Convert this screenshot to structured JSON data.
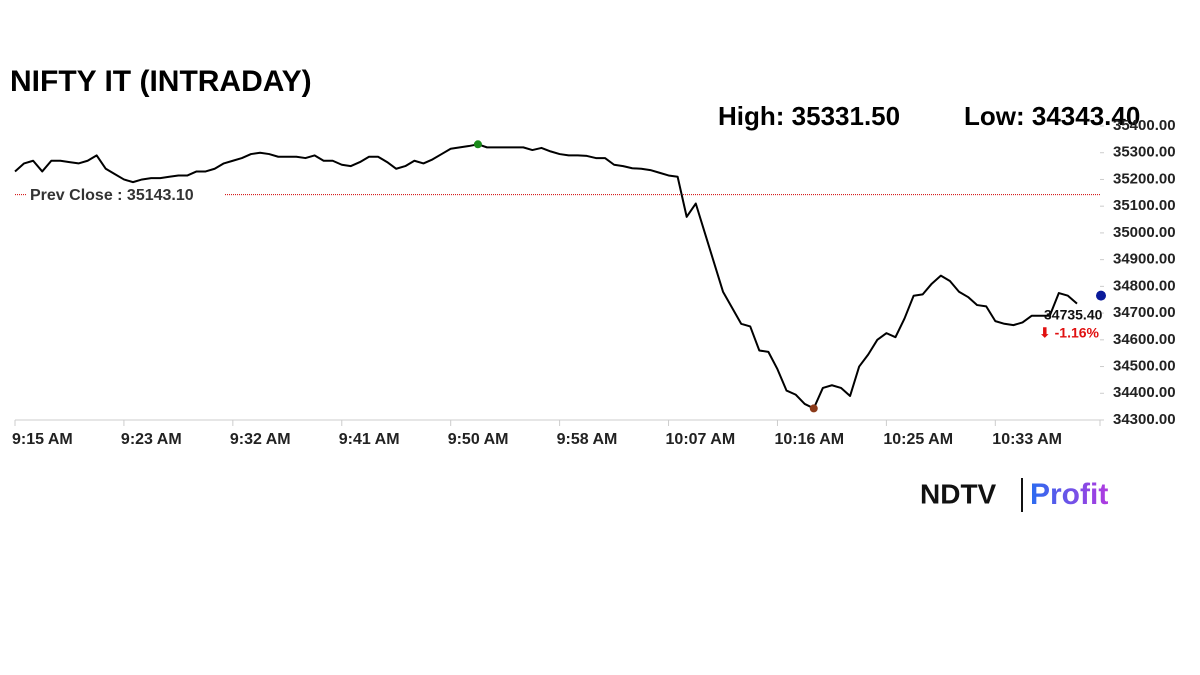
{
  "chart_data": {
    "type": "line",
    "title": "NIFTY IT (INTRADAY)",
    "high_label": "High: 35331.50",
    "low_label": "Low: 34343.40",
    "prev_close": {
      "value": 35143.1,
      "label": "Prev Close : 35143.10",
      "color": "#d00000"
    },
    "last_label": "34735.40",
    "change_label": "⬇ -1.16%",
    "color": "#000000",
    "high_color": "#1a8a1a",
    "low_color": "#8b3a1a",
    "last_color": "#0a1a9a",
    "categories": [
      "9:15 AM",
      null,
      null,
      null,
      null,
      null,
      null,
      null,
      null,
      null,
      null,
      null,
      "9:23 AM",
      null,
      null,
      null,
      null,
      null,
      null,
      null,
      null,
      null,
      null,
      null,
      "9:32 AM",
      null,
      null,
      null,
      null,
      null,
      null,
      null,
      null,
      null,
      null,
      null,
      "9:41 AM",
      null,
      null,
      null,
      null,
      null,
      null,
      null,
      null,
      null,
      null,
      null,
      "9:50 AM",
      null,
      null,
      null,
      null,
      null,
      null,
      null,
      null,
      null,
      null,
      null,
      "9:58 AM",
      null,
      null,
      null,
      null,
      null,
      null,
      null,
      null,
      null,
      null,
      null,
      "10:07 AM",
      null,
      null,
      null,
      null,
      null,
      null,
      null,
      null,
      null,
      null,
      null,
      "10:16 AM",
      null,
      null,
      null,
      null,
      null,
      null,
      null,
      null,
      null,
      null,
      null,
      "10:25 AM",
      null,
      null,
      null,
      null,
      null,
      null,
      null,
      null,
      null,
      null,
      null,
      "10:33 AM",
      null,
      null,
      null,
      null,
      null,
      null,
      null,
      null,
      null
    ],
    "values": [
      35230,
      35260,
      35270,
      35230,
      35270,
      35270,
      35265,
      35260,
      35270,
      35290,
      35240,
      35220,
      35200,
      35190,
      35200,
      35205,
      35205,
      35210,
      35215,
      35215,
      35230,
      35230,
      35240,
      35260,
      35270,
      35280,
      35295,
      35300,
      35295,
      35285,
      35285,
      35285,
      35280,
      35290,
      35270,
      35270,
      35255,
      35250,
      35265,
      35285,
      35285,
      35265,
      35240,
      35250,
      35270,
      35260,
      35275,
      35295,
      35315,
      35320,
      35325,
      35331.5,
      35320,
      35320,
      35320,
      35320,
      35320,
      35310,
      35318,
      35305,
      35295,
      35290,
      35290,
      35288,
      35280,
      35280,
      35255,
      35250,
      35242,
      35240,
      35235,
      35225,
      35215,
      35210,
      35060,
      35110,
      35000,
      34890,
      34780,
      34720,
      34660,
      34650,
      34560,
      34555,
      34490,
      34410,
      34395,
      34360,
      34343.4,
      34420,
      34430,
      34420,
      34390,
      34500,
      34545,
      34600,
      34625,
      34610,
      34680,
      34765,
      34770,
      34810,
      34840,
      34820,
      34780,
      34760,
      34730,
      34725,
      34670,
      34660,
      34655,
      34665,
      34690,
      34690,
      34690,
      34775,
      34765,
      34735.4
    ],
    "ylim": [
      34300,
      35400
    ],
    "yticks": [
      {
        "value": 34300,
        "label": "34300.00"
      },
      {
        "value": 34400,
        "label": "34400.00"
      },
      {
        "value": 34500,
        "label": "34500.00"
      },
      {
        "value": 34600,
        "label": "34600.00"
      },
      {
        "value": 34700,
        "label": "34700.00"
      },
      {
        "value": 34800,
        "label": "34800.00"
      },
      {
        "value": 34900,
        "label": "34900.00"
      },
      {
        "value": 35000,
        "label": "35000.00"
      },
      {
        "value": 35100,
        "label": "35100.00"
      },
      {
        "value": 35200,
        "label": "35200.00"
      },
      {
        "value": 35300,
        "label": "35300.00"
      },
      {
        "value": 35400,
        "label": "35400.00"
      }
    ],
    "grid": false
  },
  "logo": {
    "left": "NDTV",
    "right": "Profit"
  }
}
